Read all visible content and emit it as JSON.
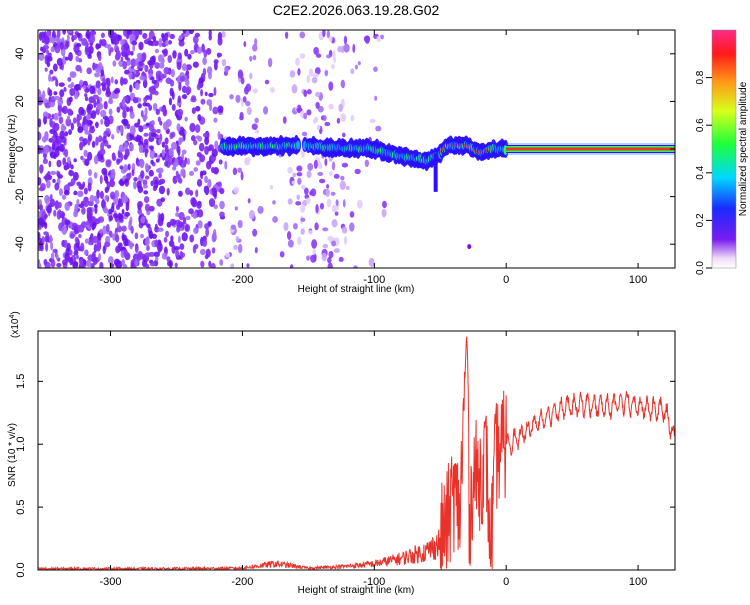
{
  "title": "C2E2.2026.063.19.28.G02",
  "chart_data": [
    {
      "type": "heatmap",
      "xlabel": "Height of straight line (km)",
      "ylabel": "Frequency (Hz)",
      "xlim": [
        -355,
        128
      ],
      "ylim": [
        -50,
        50
      ],
      "xticks": [
        -300,
        -200,
        -100,
        0,
        100
      ],
      "yticks": [
        -40,
        -20,
        0,
        20,
        40
      ],
      "colorbar": {
        "label": "Normalized spectral amplitude",
        "range": [
          0,
          1
        ],
        "ticks": [
          "0.0",
          "0.2",
          "0.4",
          "0.6",
          "0.8"
        ],
        "tick_values": [
          0.0,
          0.2,
          0.4,
          0.6,
          0.8
        ]
      },
      "ridge_points": [
        {
          "x": -215,
          "y": 1
        },
        {
          "x": -150,
          "y": 1.5
        },
        {
          "x": -135,
          "y": 0.5
        },
        {
          "x": -100,
          "y": 0
        },
        {
          "x": -80,
          "y": -3
        },
        {
          "x": -60,
          "y": -5
        },
        {
          "x": -50,
          "y": -2
        },
        {
          "x": -45,
          "y": 1.5
        },
        {
          "x": -30,
          "y": 1.5
        },
        {
          "x": -20,
          "y": -1.5
        },
        {
          "x": -10,
          "y": 0
        },
        {
          "x": 0,
          "y": 0
        },
        {
          "x": 128,
          "y": 0
        }
      ],
      "grid": false
    },
    {
      "type": "line",
      "xlabel": "Height of straight line (km)",
      "ylabel": "SNR (10 * v/v)",
      "y_multiplier": "(x10^4)",
      "y_multiplier_base": "(x10",
      "y_multiplier_exp": "4",
      "y_multiplier_close": ")",
      "xlim": [
        -355,
        128
      ],
      "ylim": [
        0,
        1.9
      ],
      "xticks": [
        -300,
        -200,
        -100,
        0,
        100
      ],
      "yticks": [
        "0.0",
        "0.5",
        "1.0",
        "1.5"
      ],
      "ytick_values": [
        0.0,
        0.5,
        1.0,
        1.5
      ],
      "line_color": "#e8322a",
      "series": [
        {
          "x": [
            -355,
            -300,
            -250,
            -200,
            -175,
            -150,
            -120,
            -100,
            -80,
            -60,
            -50,
            -45,
            -40,
            -35,
            -32,
            -30,
            -28,
            -25,
            -20,
            -15,
            -12,
            -8,
            -5,
            0,
            10,
            20,
            30,
            40,
            50,
            60,
            70,
            80,
            90,
            100,
            110,
            120,
            128
          ],
          "y": [
            0.01,
            0.01,
            0.01,
            0.015,
            0.05,
            0.015,
            0.03,
            0.05,
            0.09,
            0.15,
            0.22,
            0.35,
            0.6,
            0.45,
            1.3,
            1.9,
            0.4,
            0.75,
            0.75,
            0.9,
            0.1,
            0.9,
            0.95,
            1.0,
            1.05,
            1.15,
            1.22,
            1.28,
            1.3,
            1.32,
            1.3,
            1.3,
            1.33,
            1.3,
            1.28,
            1.27,
            1.05
          ]
        }
      ]
    }
  ]
}
